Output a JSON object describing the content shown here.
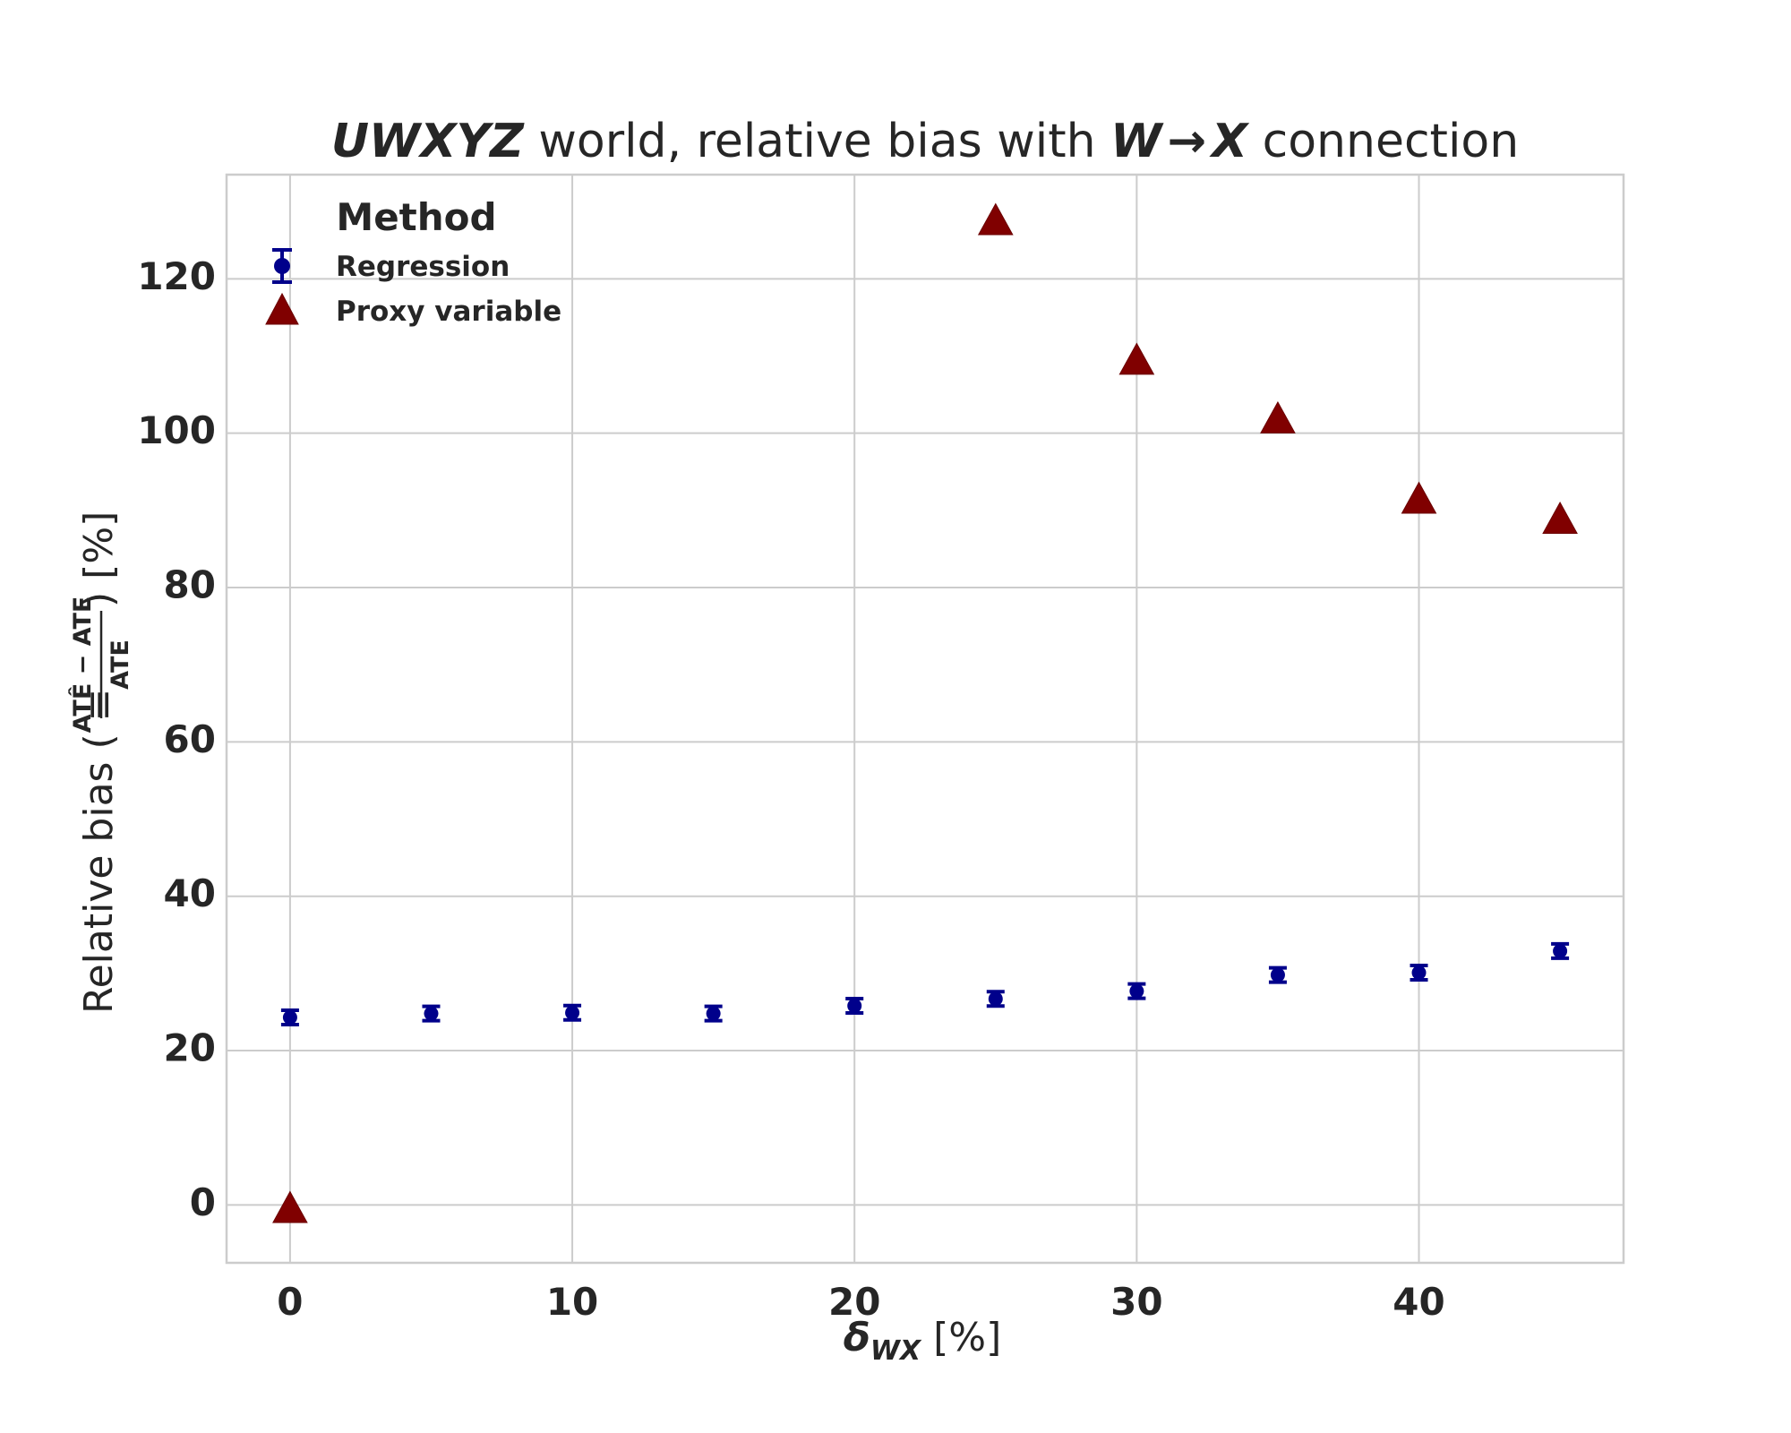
{
  "chart_data": {
    "type": "scatter",
    "title": {
      "part1": "UWXYZ",
      "part2": " world, relative bias with ",
      "part3": "W",
      "arrow": "→",
      "part4": "X",
      "part5": " connection"
    },
    "xlabel": {
      "symbol": "δ",
      "subscript": "WX",
      "unit": " [%]"
    },
    "ylabel": {
      "prefix": "Relative bias ( ≡ ",
      "numerator": "ATÊ − ATE",
      "denominator": "ATE",
      "suffix": " ) [%]"
    },
    "xlim": [
      -2.25,
      47.25
    ],
    "ylim": [
      -7.5,
      133.5
    ],
    "xticks": [
      "0",
      "10",
      "20",
      "30",
      "40"
    ],
    "yticks": [
      "0",
      "20",
      "40",
      "60",
      "80",
      "100",
      "120"
    ],
    "grid": true,
    "legend": {
      "title": "Method",
      "placement": "top-left",
      "entries": [
        "Regression",
        "Proxy variable"
      ]
    },
    "series": [
      {
        "name": "Regression",
        "marker": "circle",
        "color": "#00008b",
        "x": [
          0,
          5,
          10,
          15,
          20,
          25,
          30,
          35,
          40,
          45
        ],
        "y": [
          24.3,
          24.8,
          24.9,
          24.8,
          25.8,
          26.7,
          27.7,
          29.8,
          30.1,
          32.9
        ],
        "yerr": [
          0.6,
          0.6,
          0.6,
          0.6,
          0.6,
          0.6,
          0.6,
          0.6,
          0.6,
          0.6
        ]
      },
      {
        "name": "Proxy variable",
        "marker": "triangle",
        "color": "#800000",
        "x": [
          0,
          25,
          30,
          35,
          40,
          45
        ],
        "y": [
          -0.6,
          127.4,
          109.3,
          101.7,
          91.3,
          88.7
        ]
      }
    ]
  }
}
